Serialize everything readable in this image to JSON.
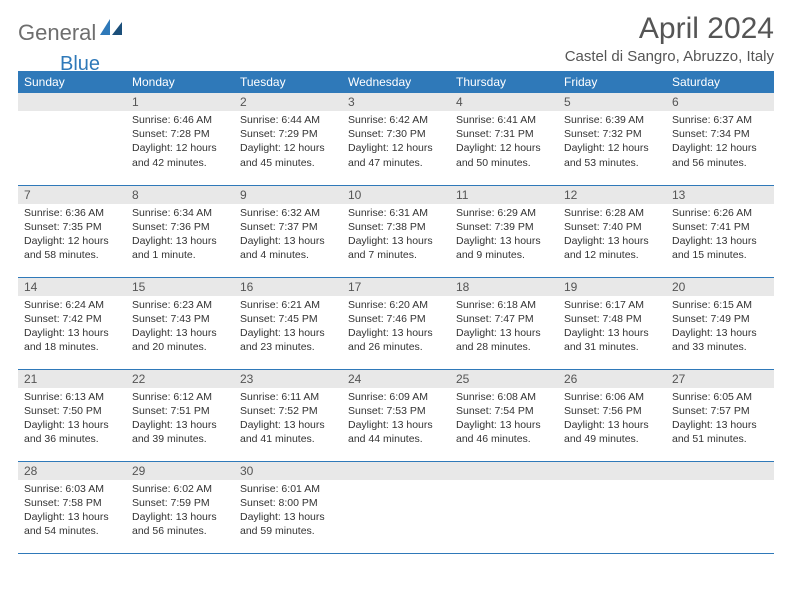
{
  "brand": {
    "part1": "General",
    "part2": "Blue"
  },
  "title": "April 2024",
  "location": "Castel di Sangro, Abruzzo, Italy",
  "colors": {
    "header_bg": "#2f79b9",
    "header_fg": "#ffffff",
    "daynum_bg": "#e8e8e8",
    "border": "#2f79b9",
    "logo_gray": "#6e6e6e",
    "logo_blue": "#2f79b9"
  },
  "weekdays": [
    "Sunday",
    "Monday",
    "Tuesday",
    "Wednesday",
    "Thursday",
    "Friday",
    "Saturday"
  ],
  "weeks": [
    [
      {
        "n": "",
        "sr": "",
        "ss": "",
        "dl": ""
      },
      {
        "n": "1",
        "sr": "Sunrise: 6:46 AM",
        "ss": "Sunset: 7:28 PM",
        "dl": "Daylight: 12 hours and 42 minutes."
      },
      {
        "n": "2",
        "sr": "Sunrise: 6:44 AM",
        "ss": "Sunset: 7:29 PM",
        "dl": "Daylight: 12 hours and 45 minutes."
      },
      {
        "n": "3",
        "sr": "Sunrise: 6:42 AM",
        "ss": "Sunset: 7:30 PM",
        "dl": "Daylight: 12 hours and 47 minutes."
      },
      {
        "n": "4",
        "sr": "Sunrise: 6:41 AM",
        "ss": "Sunset: 7:31 PM",
        "dl": "Daylight: 12 hours and 50 minutes."
      },
      {
        "n": "5",
        "sr": "Sunrise: 6:39 AM",
        "ss": "Sunset: 7:32 PM",
        "dl": "Daylight: 12 hours and 53 minutes."
      },
      {
        "n": "6",
        "sr": "Sunrise: 6:37 AM",
        "ss": "Sunset: 7:34 PM",
        "dl": "Daylight: 12 hours and 56 minutes."
      }
    ],
    [
      {
        "n": "7",
        "sr": "Sunrise: 6:36 AM",
        "ss": "Sunset: 7:35 PM",
        "dl": "Daylight: 12 hours and 58 minutes."
      },
      {
        "n": "8",
        "sr": "Sunrise: 6:34 AM",
        "ss": "Sunset: 7:36 PM",
        "dl": "Daylight: 13 hours and 1 minute."
      },
      {
        "n": "9",
        "sr": "Sunrise: 6:32 AM",
        "ss": "Sunset: 7:37 PM",
        "dl": "Daylight: 13 hours and 4 minutes."
      },
      {
        "n": "10",
        "sr": "Sunrise: 6:31 AM",
        "ss": "Sunset: 7:38 PM",
        "dl": "Daylight: 13 hours and 7 minutes."
      },
      {
        "n": "11",
        "sr": "Sunrise: 6:29 AM",
        "ss": "Sunset: 7:39 PM",
        "dl": "Daylight: 13 hours and 9 minutes."
      },
      {
        "n": "12",
        "sr": "Sunrise: 6:28 AM",
        "ss": "Sunset: 7:40 PM",
        "dl": "Daylight: 13 hours and 12 minutes."
      },
      {
        "n": "13",
        "sr": "Sunrise: 6:26 AM",
        "ss": "Sunset: 7:41 PM",
        "dl": "Daylight: 13 hours and 15 minutes."
      }
    ],
    [
      {
        "n": "14",
        "sr": "Sunrise: 6:24 AM",
        "ss": "Sunset: 7:42 PM",
        "dl": "Daylight: 13 hours and 18 minutes."
      },
      {
        "n": "15",
        "sr": "Sunrise: 6:23 AM",
        "ss": "Sunset: 7:43 PM",
        "dl": "Daylight: 13 hours and 20 minutes."
      },
      {
        "n": "16",
        "sr": "Sunrise: 6:21 AM",
        "ss": "Sunset: 7:45 PM",
        "dl": "Daylight: 13 hours and 23 minutes."
      },
      {
        "n": "17",
        "sr": "Sunrise: 6:20 AM",
        "ss": "Sunset: 7:46 PM",
        "dl": "Daylight: 13 hours and 26 minutes."
      },
      {
        "n": "18",
        "sr": "Sunrise: 6:18 AM",
        "ss": "Sunset: 7:47 PM",
        "dl": "Daylight: 13 hours and 28 minutes."
      },
      {
        "n": "19",
        "sr": "Sunrise: 6:17 AM",
        "ss": "Sunset: 7:48 PM",
        "dl": "Daylight: 13 hours and 31 minutes."
      },
      {
        "n": "20",
        "sr": "Sunrise: 6:15 AM",
        "ss": "Sunset: 7:49 PM",
        "dl": "Daylight: 13 hours and 33 minutes."
      }
    ],
    [
      {
        "n": "21",
        "sr": "Sunrise: 6:13 AM",
        "ss": "Sunset: 7:50 PM",
        "dl": "Daylight: 13 hours and 36 minutes."
      },
      {
        "n": "22",
        "sr": "Sunrise: 6:12 AM",
        "ss": "Sunset: 7:51 PM",
        "dl": "Daylight: 13 hours and 39 minutes."
      },
      {
        "n": "23",
        "sr": "Sunrise: 6:11 AM",
        "ss": "Sunset: 7:52 PM",
        "dl": "Daylight: 13 hours and 41 minutes."
      },
      {
        "n": "24",
        "sr": "Sunrise: 6:09 AM",
        "ss": "Sunset: 7:53 PM",
        "dl": "Daylight: 13 hours and 44 minutes."
      },
      {
        "n": "25",
        "sr": "Sunrise: 6:08 AM",
        "ss": "Sunset: 7:54 PM",
        "dl": "Daylight: 13 hours and 46 minutes."
      },
      {
        "n": "26",
        "sr": "Sunrise: 6:06 AM",
        "ss": "Sunset: 7:56 PM",
        "dl": "Daylight: 13 hours and 49 minutes."
      },
      {
        "n": "27",
        "sr": "Sunrise: 6:05 AM",
        "ss": "Sunset: 7:57 PM",
        "dl": "Daylight: 13 hours and 51 minutes."
      }
    ],
    [
      {
        "n": "28",
        "sr": "Sunrise: 6:03 AM",
        "ss": "Sunset: 7:58 PM",
        "dl": "Daylight: 13 hours and 54 minutes."
      },
      {
        "n": "29",
        "sr": "Sunrise: 6:02 AM",
        "ss": "Sunset: 7:59 PM",
        "dl": "Daylight: 13 hours and 56 minutes."
      },
      {
        "n": "30",
        "sr": "Sunrise: 6:01 AM",
        "ss": "Sunset: 8:00 PM",
        "dl": "Daylight: 13 hours and 59 minutes."
      },
      {
        "n": "",
        "sr": "",
        "ss": "",
        "dl": ""
      },
      {
        "n": "",
        "sr": "",
        "ss": "",
        "dl": ""
      },
      {
        "n": "",
        "sr": "",
        "ss": "",
        "dl": ""
      },
      {
        "n": "",
        "sr": "",
        "ss": "",
        "dl": ""
      }
    ]
  ]
}
